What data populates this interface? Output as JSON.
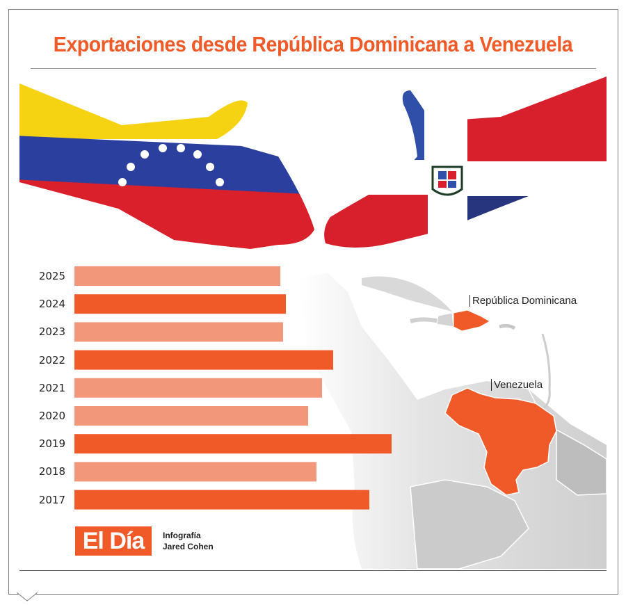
{
  "title": "Exportaciones desde República Dominicana a Venezuela",
  "map_labels": {
    "dominican_republic": "República Dominicana",
    "venezuela": "Venezuela"
  },
  "logo": {
    "text": "El Día"
  },
  "credit": {
    "line1": "Infografía",
    "line2": "Jared Cohen"
  },
  "colors": {
    "accent": "#f05a28",
    "light": "#f2977a",
    "map_gray": "#c8c8c8"
  },
  "chart_data": {
    "type": "bar",
    "orientation": "horizontal",
    "categories": [
      "2025",
      "2024",
      "2023",
      "2022",
      "2021",
      "2020",
      "2019",
      "2018",
      "2017"
    ],
    "values": [
      74,
      76,
      75,
      93,
      89,
      84,
      114,
      87,
      106
    ],
    "values_estimated": true,
    "bar_colors": [
      "light",
      "accent",
      "light",
      "accent",
      "light",
      "light",
      "accent",
      "light",
      "accent"
    ]
  }
}
